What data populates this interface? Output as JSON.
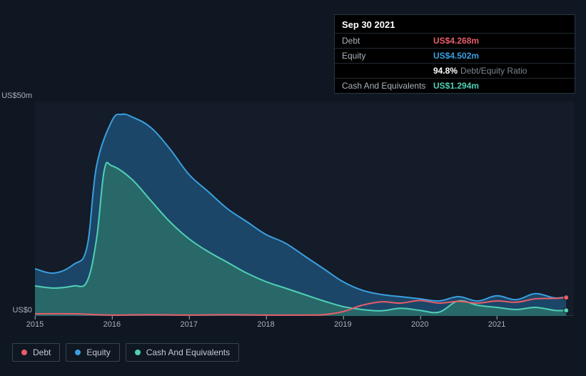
{
  "tooltip": {
    "date": "Sep 30 2021",
    "rows": [
      {
        "label": "Debt",
        "value": "US$4.268m",
        "color": "#e85d6a",
        "suffix": ""
      },
      {
        "label": "Equity",
        "value": "US$4.502m",
        "color": "#3a9fe0",
        "suffix": ""
      },
      {
        "label": "",
        "value": "94.8%",
        "color": "#ffffff",
        "suffix": "Debt/Equity Ratio"
      },
      {
        "label": "Cash And Equivalents",
        "value": "US$1.294m",
        "color": "#4fd0b6",
        "suffix": ""
      }
    ]
  },
  "chart": {
    "type": "area-line",
    "background_color": "#131c28",
    "page_background": "#0f1722",
    "text_color": "#aab2bb",
    "y": {
      "min": 0,
      "max": 50,
      "ticks": [
        {
          "v": 50,
          "label": "US$50m"
        },
        {
          "v": 0,
          "label": "US$0"
        }
      ],
      "label_fontsize": 11
    },
    "x": {
      "min": 0,
      "max": 28,
      "ticks": [
        {
          "v": 0,
          "label": "2015"
        },
        {
          "v": 4,
          "label": "2016"
        },
        {
          "v": 8,
          "label": "2017"
        },
        {
          "v": 12,
          "label": "2018"
        },
        {
          "v": 16,
          "label": "2019"
        },
        {
          "v": 20,
          "label": "2020"
        },
        {
          "v": 24,
          "label": "2021"
        }
      ],
      "label_fontsize": 11
    },
    "series": [
      {
        "name": "Equity",
        "color": "#3a9fe0",
        "fill": "#1e4e72",
        "fill_opacity": 0.85,
        "type": "area",
        "line_width": 2,
        "points": [
          [
            0,
            11
          ],
          [
            1,
            10
          ],
          [
            2,
            12
          ],
          [
            2.7,
            16
          ],
          [
            3.2,
            35
          ],
          [
            4,
            45.5
          ],
          [
            4.5,
            47
          ],
          [
            5,
            46.5
          ],
          [
            6,
            44
          ],
          [
            7,
            39
          ],
          [
            8,
            33
          ],
          [
            9,
            29
          ],
          [
            10,
            25
          ],
          [
            11,
            22
          ],
          [
            12,
            19
          ],
          [
            13,
            17
          ],
          [
            14,
            14
          ],
          [
            15,
            11
          ],
          [
            16,
            8
          ],
          [
            17,
            6
          ],
          [
            18,
            5
          ],
          [
            19,
            4.5
          ],
          [
            20,
            4
          ],
          [
            21,
            3.5
          ],
          [
            22,
            4.5
          ],
          [
            23,
            3.5
          ],
          [
            24,
            4.7
          ],
          [
            25,
            3.8
          ],
          [
            26,
            5.2
          ],
          [
            27,
            4.2
          ],
          [
            27.6,
            4.5
          ]
        ]
      },
      {
        "name": "Cash And Equivalents",
        "color": "#4fd0b6",
        "fill": "#2b6e6a",
        "fill_opacity": 0.85,
        "type": "area",
        "line_width": 2,
        "points": [
          [
            0,
            7
          ],
          [
            1,
            6.5
          ],
          [
            2,
            7
          ],
          [
            2.7,
            8
          ],
          [
            3.2,
            18
          ],
          [
            3.6,
            34
          ],
          [
            4,
            35
          ],
          [
            5,
            32
          ],
          [
            6,
            27
          ],
          [
            7,
            22
          ],
          [
            8,
            18
          ],
          [
            9,
            15
          ],
          [
            10,
            12.5
          ],
          [
            11,
            10
          ],
          [
            12,
            8
          ],
          [
            13,
            6.5
          ],
          [
            14,
            5
          ],
          [
            15,
            3.5
          ],
          [
            16,
            2.2
          ],
          [
            17,
            1.5
          ],
          [
            18,
            1.2
          ],
          [
            19,
            1.8
          ],
          [
            20,
            1.3
          ],
          [
            21,
            0.9
          ],
          [
            22,
            3.5
          ],
          [
            23,
            2.5
          ],
          [
            24,
            2.0
          ],
          [
            25,
            1.5
          ],
          [
            26,
            2.0
          ],
          [
            27,
            1.3
          ],
          [
            27.6,
            1.3
          ]
        ]
      },
      {
        "name": "Debt",
        "color": "#e85d6a",
        "fill": "",
        "fill_opacity": 0,
        "type": "line",
        "line_width": 2,
        "points": [
          [
            0,
            0.5
          ],
          [
            2,
            0.5
          ],
          [
            4,
            0.2
          ],
          [
            6,
            0.3
          ],
          [
            8,
            0.2
          ],
          [
            10,
            0.3
          ],
          [
            12,
            0.2
          ],
          [
            14,
            0.2
          ],
          [
            15,
            0.3
          ],
          [
            16,
            1.0
          ],
          [
            17,
            2.5
          ],
          [
            18,
            3.3
          ],
          [
            19,
            3.0
          ],
          [
            20,
            3.6
          ],
          [
            21,
            3.0
          ],
          [
            22,
            3.4
          ],
          [
            23,
            3.0
          ],
          [
            24,
            3.5
          ],
          [
            25,
            3.2
          ],
          [
            26,
            4.0
          ],
          [
            27,
            4.1
          ],
          [
            27.6,
            4.3
          ]
        ]
      }
    ],
    "end_markers": [
      {
        "x": 27.6,
        "y": 4.5,
        "color": "#3a9fe0"
      },
      {
        "x": 27.6,
        "y": 4.3,
        "color": "#e85d6a"
      },
      {
        "x": 27.6,
        "y": 1.3,
        "color": "#4fd0b6"
      }
    ],
    "marker_radius": 3.5
  },
  "legend": {
    "items": [
      {
        "label": "Debt",
        "color": "#e85d6a"
      },
      {
        "label": "Equity",
        "color": "#3a9fe0"
      },
      {
        "label": "Cash And Equivalents",
        "color": "#4fd0b6"
      }
    ],
    "border_color": "#38424e",
    "fontsize": 12
  }
}
